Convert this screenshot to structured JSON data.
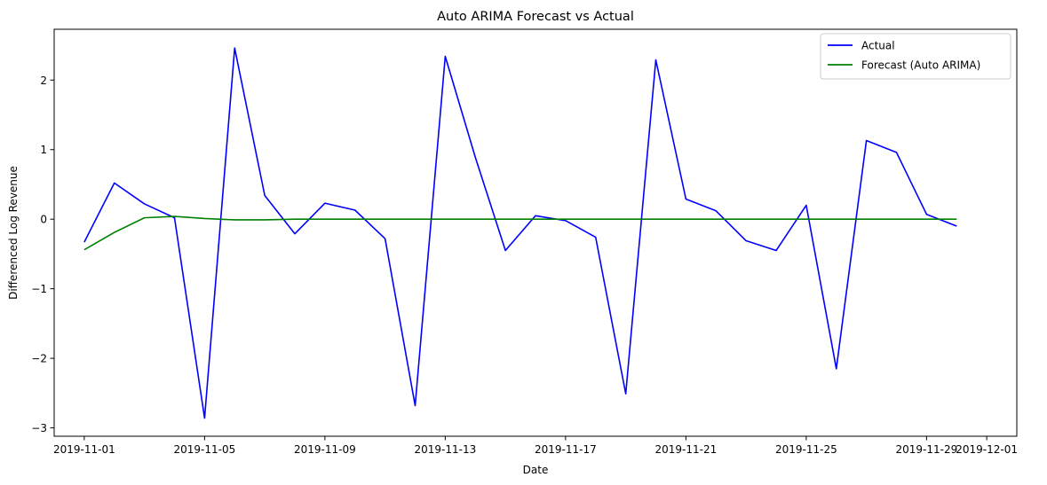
{
  "chart_data": {
    "type": "line",
    "title": "Auto ARIMA Forecast vs Actual",
    "xlabel": "Date",
    "ylabel": "Differenced Log Revenue",
    "x": [
      "2019-11-01",
      "2019-11-02",
      "2019-11-03",
      "2019-11-04",
      "2019-11-05",
      "2019-11-06",
      "2019-11-07",
      "2019-11-08",
      "2019-11-09",
      "2019-11-10",
      "2019-11-11",
      "2019-11-12",
      "2019-11-13",
      "2019-11-14",
      "2019-11-15",
      "2019-11-16",
      "2019-11-17",
      "2019-11-18",
      "2019-11-19",
      "2019-11-20",
      "2019-11-21",
      "2019-11-22",
      "2019-11-23",
      "2019-11-24",
      "2019-11-25",
      "2019-11-26",
      "2019-11-27",
      "2019-11-28",
      "2019-11-29",
      "2019-11-30"
    ],
    "series": [
      {
        "name": "Actual",
        "color": "#0000ff",
        "values": [
          -0.33,
          0.52,
          0.22,
          0.02,
          -2.86,
          2.46,
          0.34,
          -0.21,
          0.23,
          0.13,
          -0.28,
          -2.68,
          2.34,
          0.89,
          -0.45,
          0.05,
          -0.02,
          -0.26,
          -2.51,
          2.29,
          0.29,
          0.12,
          -0.31,
          -0.45,
          0.2,
          -2.15,
          1.13,
          0.96,
          0.07,
          -0.1
        ]
      },
      {
        "name": "Forecast (Auto ARIMA)",
        "color": "#008000",
        "values": [
          -0.44,
          -0.19,
          0.02,
          0.04,
          0.01,
          -0.01,
          -0.01,
          0.0,
          0.0,
          0.0,
          0.0,
          0.0,
          0.0,
          0.0,
          0.0,
          0.0,
          0.0,
          0.0,
          0.0,
          0.0,
          0.0,
          0.0,
          0.0,
          0.0,
          0.0,
          0.0,
          0.0,
          0.0,
          0.0,
          0.0
        ]
      }
    ],
    "x_ticks": [
      "2019-11-01",
      "2019-11-05",
      "2019-11-09",
      "2019-11-13",
      "2019-11-17",
      "2019-11-21",
      "2019-11-25",
      "2019-11-29",
      "2019-12-01"
    ],
    "y_ticks": [
      -3,
      -2,
      -1,
      0,
      1,
      2
    ],
    "xlim": [
      "2019-10-31",
      "2019-12-02"
    ],
    "ylim": [
      -3.12,
      2.73
    ],
    "grid": false,
    "legend_position": "top-right"
  }
}
